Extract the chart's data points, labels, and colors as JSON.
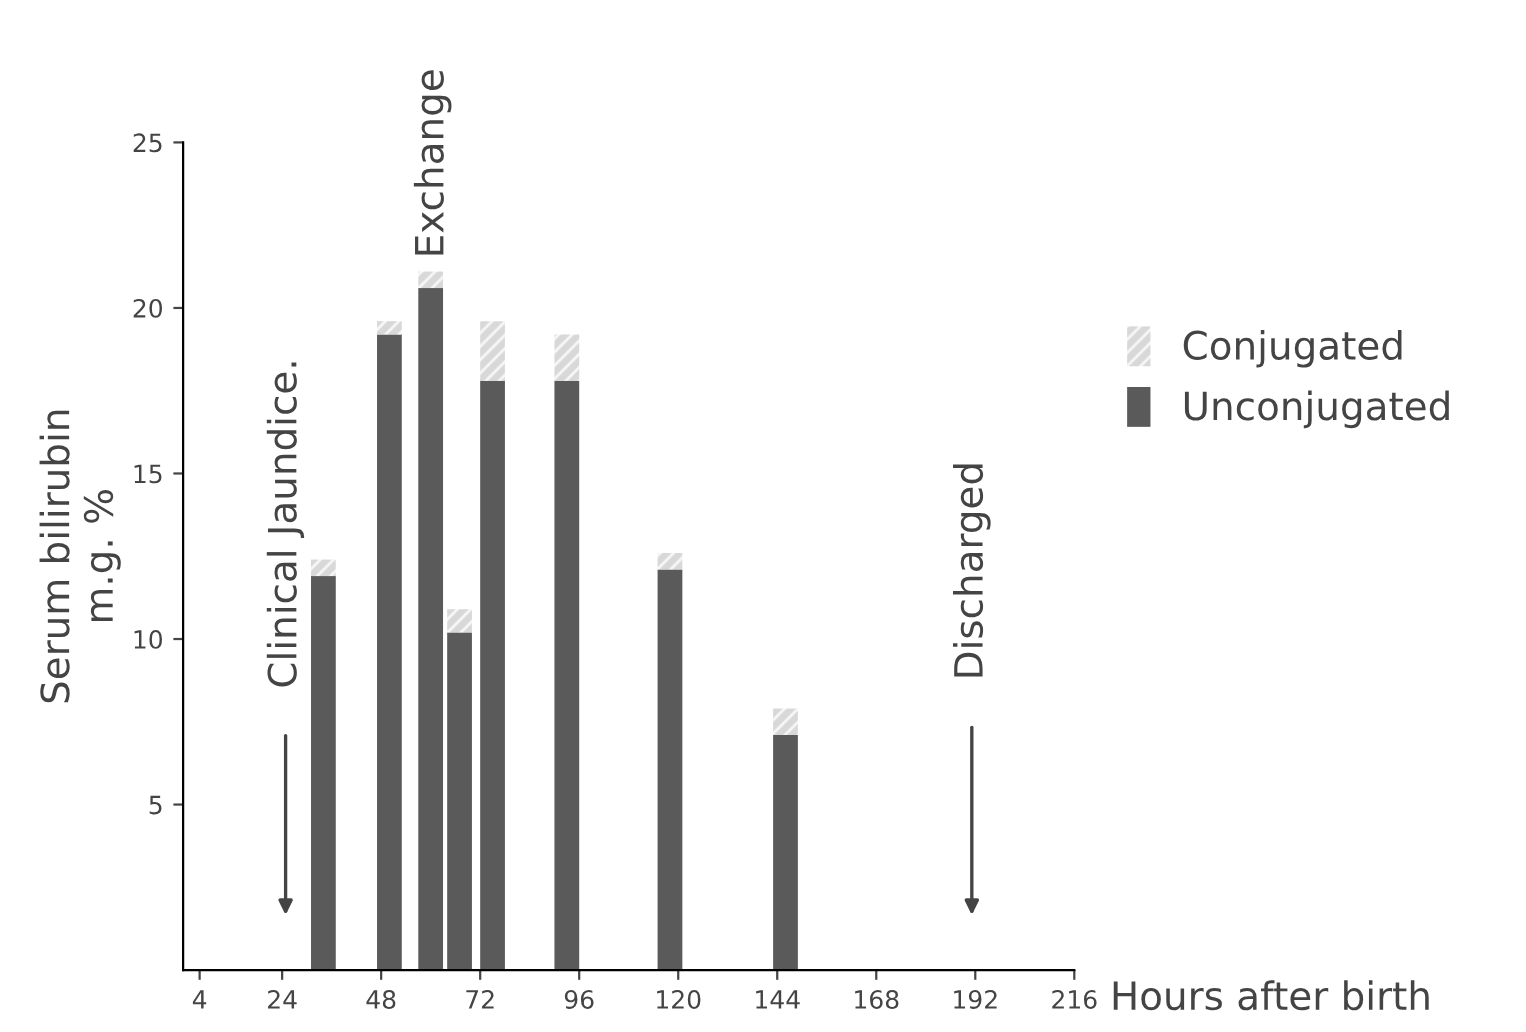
{
  "chart_data": {
    "type": "bar",
    "stacked": true,
    "x": [
      34,
      50,
      60,
      67,
      75,
      93,
      118,
      146
    ],
    "series": [
      {
        "name": "Unconjugated",
        "color": "#5a5a5a",
        "values": [
          11.9,
          19.2,
          20.6,
          10.2,
          17.8,
          17.8,
          12.1,
          7.1
        ]
      },
      {
        "name": "Conjugated",
        "color": "#d8d8d8",
        "values": [
          0.5,
          0.4,
          0.5,
          0.7,
          1.8,
          1.4,
          0.5,
          0.8
        ]
      }
    ],
    "xlabel": "Hours after birth",
    "ylabel": "Serum bilirubin\nm.g. %",
    "xlim": [
      0,
      216
    ],
    "xticks": [
      4,
      24,
      48,
      72,
      96,
      120,
      144,
      168,
      192,
      216
    ],
    "ylim": [
      0,
      25
    ],
    "yticks": [
      5,
      10,
      15,
      20,
      25
    ],
    "annotations": [
      "Clinical Jaundice.",
      "Exchange",
      "Discharged"
    ],
    "legend": "right",
    "grid": false
  }
}
